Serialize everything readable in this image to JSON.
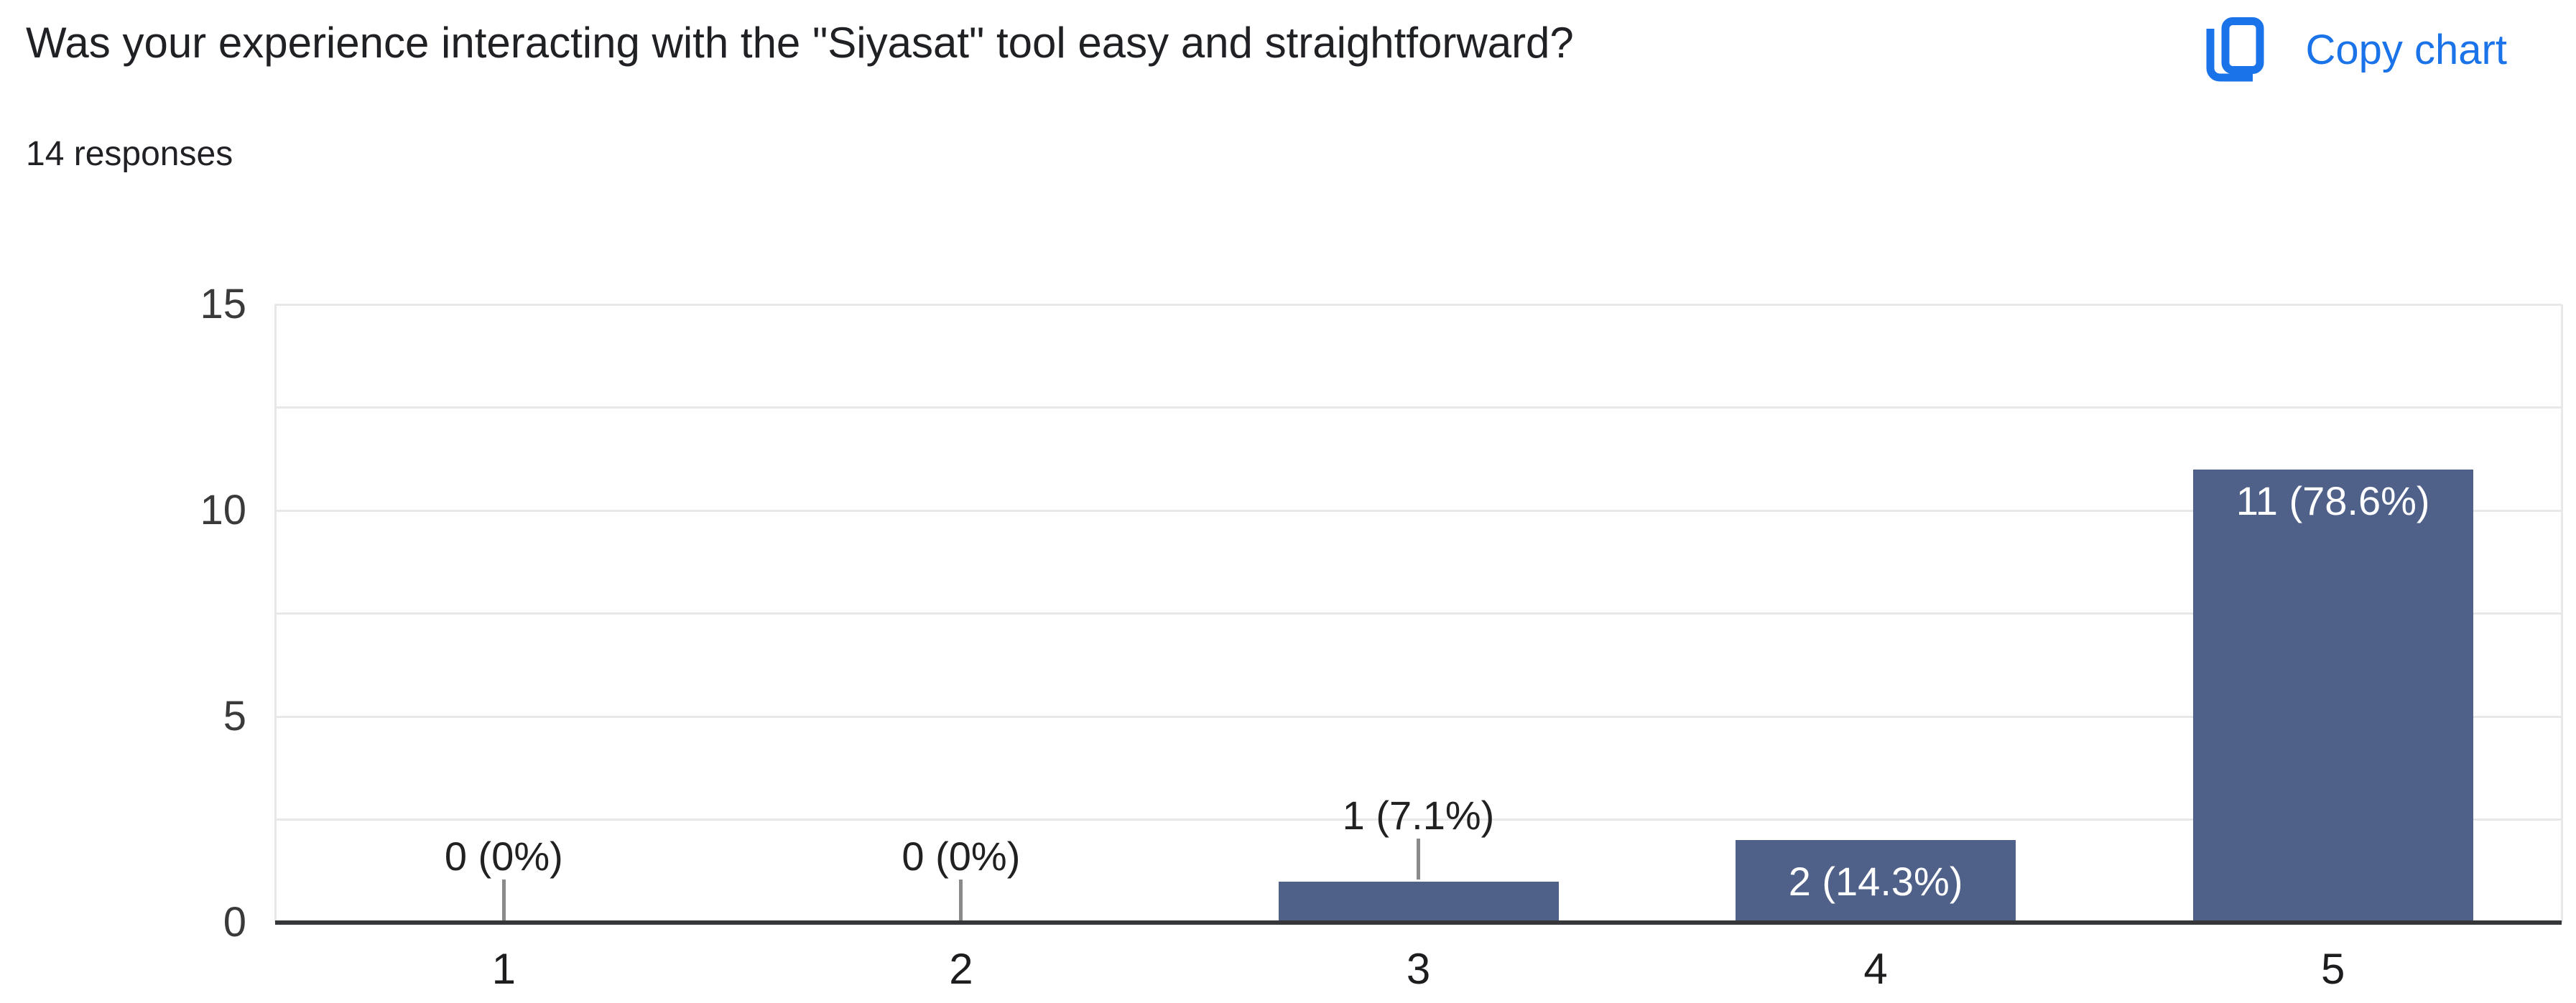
{
  "header": {
    "title": "Was your experience interacting with the \"Siyasat\" tool easy and straightforward?",
    "responses_count": "14 responses",
    "copy_chart_label": "Copy chart",
    "accent_color": "#1a73e8"
  },
  "chart_data": {
    "type": "bar",
    "title": "Was your experience interacting with the \"Siyasat\" tool easy and straightforward?",
    "subtitle": "14 responses",
    "categories": [
      "1",
      "2",
      "3",
      "4",
      "5"
    ],
    "values": [
      0,
      0,
      1,
      2,
      11
    ],
    "bar_labels": [
      "0 (0%)",
      "0 (0%)",
      "1 (7.1%)",
      "2 (14.3%)",
      "11 (78.6%)"
    ],
    "label_placement": [
      "outside",
      "outside",
      "outside",
      "inside",
      "inside"
    ],
    "xlabel": "",
    "ylabel": "",
    "ylim": [
      0,
      15
    ],
    "y_ticks": [
      0,
      5,
      10,
      15
    ],
    "grid_step": 2.5,
    "grid_on": true,
    "legend": "none",
    "bar_color": "#506189",
    "outside_label_color": "#212121",
    "inside_label_color": "#ffffff"
  }
}
